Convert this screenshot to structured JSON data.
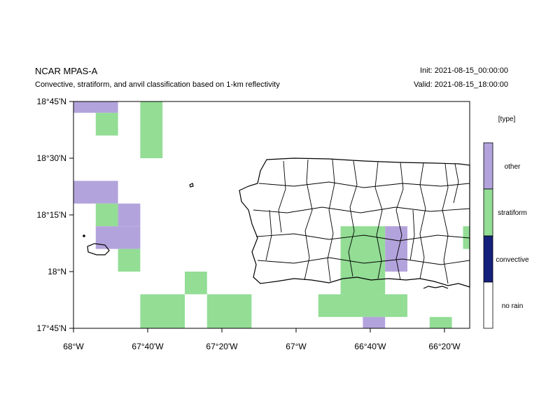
{
  "header": {
    "title": "NCAR MPAS-A",
    "subtitle": "Convective, stratiform, and anvil classification based on 1-km reflectivity",
    "init": "Init: 2021-08-15_00:00:00",
    "valid": "Valid: 2021-08-15_18:00:00"
  },
  "colors": {
    "other": "#b3a3dc",
    "stratiform": "#93dd95",
    "convective": "#15207a",
    "no_rain": "#ffffff"
  },
  "chart_data": {
    "type": "heatmap",
    "title": "NCAR MPAS-A",
    "x_range_deg": [
      -68.0,
      -66.22
    ],
    "y_range_deg": [
      17.75,
      18.75
    ],
    "x_ticks": [
      {
        "value": -68.0,
        "label": "68°W"
      },
      {
        "value": -67.6667,
        "label": "67°40'W"
      },
      {
        "value": -67.3333,
        "label": "67°20'W"
      },
      {
        "value": -67.0,
        "label": "67°W"
      },
      {
        "value": -66.6667,
        "label": "66°40'W"
      },
      {
        "value": -66.3333,
        "label": "66°20'W"
      }
    ],
    "y_ticks": [
      {
        "value": 18.75,
        "label": "18°45'N"
      },
      {
        "value": 18.5,
        "label": "18°30'N"
      },
      {
        "value": 18.25,
        "label": "18°15'N"
      },
      {
        "value": 18.0,
        "label": "18°N"
      },
      {
        "value": 17.75,
        "label": "17°45'N"
      }
    ],
    "legend": {
      "title": "[type]",
      "entries": [
        "other",
        "stratiform",
        "convective",
        "no rain"
      ]
    },
    "cells": [
      {
        "lon0": -68.0,
        "lon1": -67.8,
        "lat0": 18.7,
        "lat1": 18.75,
        "type": "other"
      },
      {
        "lon0": -67.9,
        "lon1": -67.8,
        "lat0": 18.6,
        "lat1": 18.7,
        "type": "stratiform"
      },
      {
        "lon0": -67.7,
        "lon1": -67.6,
        "lat0": 18.5,
        "lat1": 18.75,
        "type": "stratiform"
      },
      {
        "lon0": -68.0,
        "lon1": -67.8,
        "lat0": 18.3,
        "lat1": 18.4,
        "type": "other"
      },
      {
        "lon0": -67.9,
        "lon1": -67.8,
        "lat0": 18.2,
        "lat1": 18.3,
        "type": "stratiform"
      },
      {
        "lon0": -67.8,
        "lon1": -67.7,
        "lat0": 18.2,
        "lat1": 18.3,
        "type": "other"
      },
      {
        "lon0": -67.9,
        "lon1": -67.7,
        "lat0": 18.1,
        "lat1": 18.2,
        "type": "other"
      },
      {
        "lon0": -67.8,
        "lon1": -67.7,
        "lat0": 18.0,
        "lat1": 18.1,
        "type": "stratiform"
      },
      {
        "lon0": -67.5,
        "lon1": -67.4,
        "lat0": 17.9,
        "lat1": 18.0,
        "type": "stratiform"
      },
      {
        "lon0": -67.7,
        "lon1": -67.5,
        "lat0": 17.75,
        "lat1": 17.9,
        "type": "stratiform"
      },
      {
        "lon0": -67.4,
        "lon1": -67.2,
        "lat0": 17.75,
        "lat1": 17.9,
        "type": "stratiform"
      },
      {
        "lon0": -66.8,
        "lon1": -66.6,
        "lat0": 17.9,
        "lat1": 18.2,
        "type": "stratiform"
      },
      {
        "lon0": -66.6,
        "lon1": -66.5,
        "lat0": 18.0,
        "lat1": 18.2,
        "type": "other"
      },
      {
        "lon0": -66.9,
        "lon1": -66.5,
        "lat0": 17.8,
        "lat1": 17.9,
        "type": "stratiform"
      },
      {
        "lon0": -66.7,
        "lon1": -66.6,
        "lat0": 17.75,
        "lat1": 17.8,
        "type": "other"
      },
      {
        "lon0": -66.4,
        "lon1": -66.3,
        "lat0": 17.75,
        "lat1": 17.8,
        "type": "stratiform"
      },
      {
        "lon0": -66.25,
        "lon1": -66.22,
        "lat0": 18.1,
        "lat1": 18.2,
        "type": "stratiform"
      }
    ]
  }
}
